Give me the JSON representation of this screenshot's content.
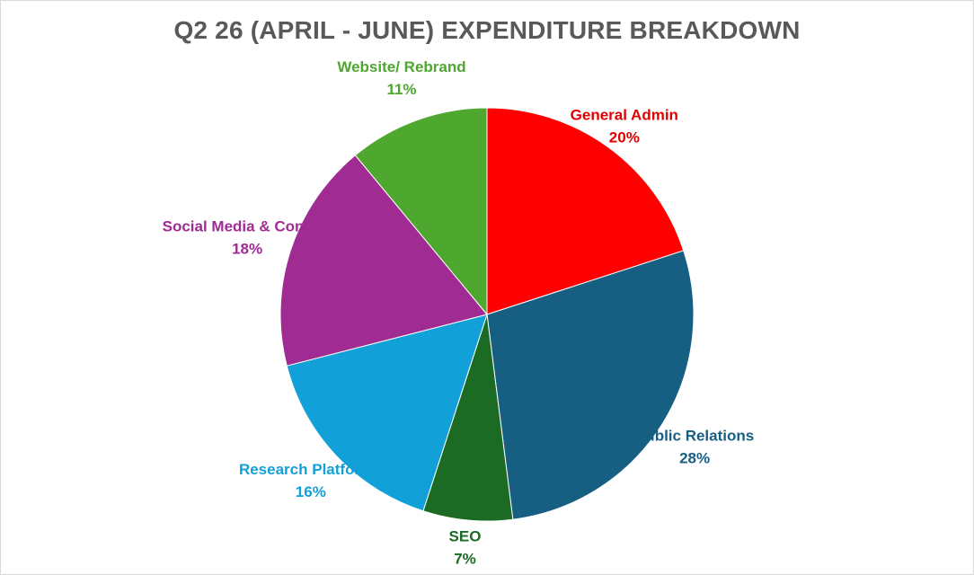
{
  "chart_data": {
    "type": "pie",
    "title": "Q2 26 (APRIL - JUNE) EXPENDITURE BREAKDOWN",
    "slices": [
      {
        "label": "General Admin",
        "value": 20,
        "display": "20%",
        "color": "#ff0000",
        "label_color": "#e00000"
      },
      {
        "label": "Public Relations",
        "value": 28,
        "display": "28%",
        "color": "#175f82",
        "label_color": "#175f82"
      },
      {
        "label": "SEO",
        "value": 7,
        "display": "7%",
        "color": "#1b6b24",
        "label_color": "#1b6b24"
      },
      {
        "label": "Research Platforms",
        "value": 16,
        "display": "16%",
        "color": "#11a0d8",
        "label_color": "#11a0d8"
      },
      {
        "label": "Social Media & Content",
        "value": 18,
        "display": "18%",
        "color": "#a02b93",
        "label_color": "#a02b93"
      },
      {
        "label": "Website/ Rebrand",
        "value": 11,
        "display": "11%",
        "color": "#4ea72e",
        "label_color": "#4ea72e"
      }
    ],
    "legend": "none",
    "labels": "outside"
  }
}
